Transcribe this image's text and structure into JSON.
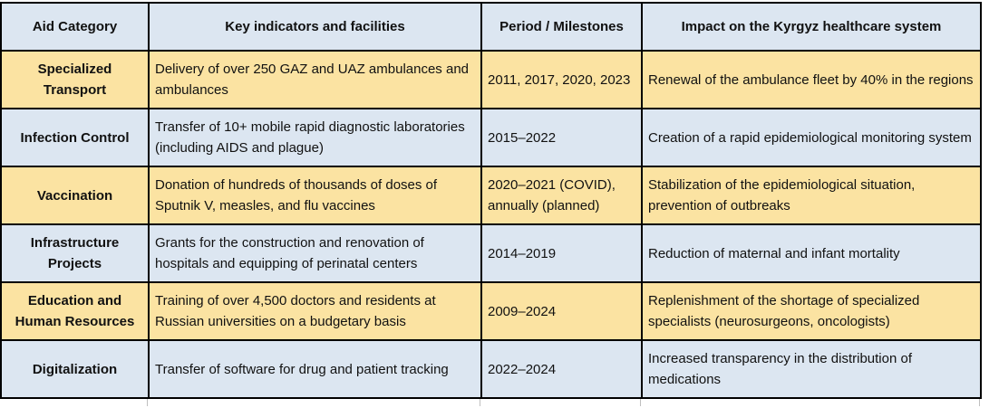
{
  "table": {
    "headers": [
      "Aid Category",
      "Key indicators and facilities",
      "Period / Milestones",
      "Impact on the Kyrgyz healthcare system"
    ],
    "rows": [
      {
        "category": "Specialized Transport",
        "indicators": "Delivery of over 250 GAZ and UAZ ambulances and ambulances",
        "period": "2011, 2017, 2020, 2023",
        "impact": "Renewal of the ambulance fleet by 40% in the regions"
      },
      {
        "category": "Infection Control",
        "indicators": "Transfer of 10+ mobile rapid diagnostic laboratories (including AIDS and plague)",
        "period": "2015–2022",
        "impact": "Creation of a rapid epidemiological monitoring system"
      },
      {
        "category": "Vaccination",
        "indicators": "Donation of hundreds of thousands of doses of Sputnik V, measles, and flu vaccines",
        "period": "2020–2021 (COVID), annually (planned)",
        "impact": "Stabilization of the epidemiological situation, prevention of outbreaks"
      },
      {
        "category": "Infrastructure Projects",
        "indicators": "Grants for the construction and renovation of hospitals and equipping of perinatal centers",
        "period": "2014–2019",
        "impact": "Reduction of maternal and infant mortality"
      },
      {
        "category": "Education and Human Resources",
        "indicators": "Training of over 4,500 doctors and residents at Russian universities on a budgetary basis",
        "period": "2009–2024",
        "impact": "Replenishment of the shortage of specialized specialists (neurosurgeons, oncologists)"
      },
      {
        "category": "Digitalization",
        "indicators": "Transfer of software for drug and patient tracking",
        "period": "2022–2024",
        "impact": "Increased transparency in the distribution of medications"
      }
    ],
    "colors": {
      "header_bg": "#dce6f1",
      "row_blue": "#dce6f1",
      "row_yellow": "#fbe3a2",
      "border": "#000000",
      "sliver_line": "#bfbfbf"
    }
  }
}
